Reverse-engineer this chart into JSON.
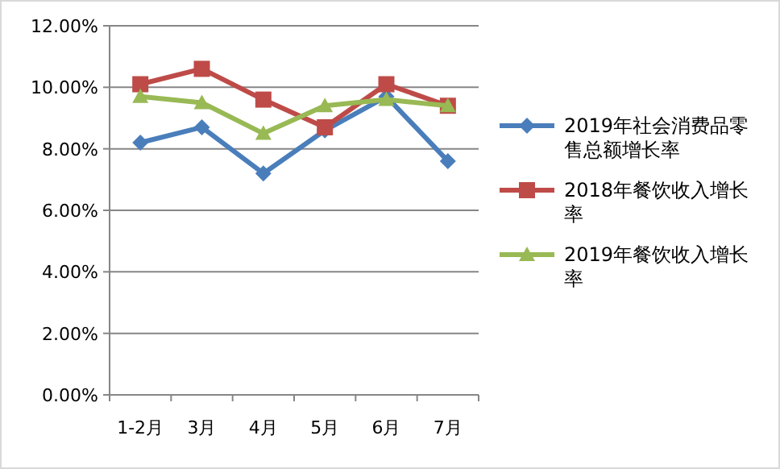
{
  "chart_data": {
    "type": "line",
    "categories": [
      "1-2月",
      "3月",
      "4月",
      "5月",
      "6月",
      "7月"
    ],
    "series": [
      {
        "name": "2019年社会消费品零售总额增长率",
        "color": "#4a7ebb",
        "marker": "diamond",
        "values": [
          8.2,
          8.7,
          7.2,
          8.6,
          9.7,
          7.6
        ]
      },
      {
        "name": "2018年餐饮收入增长率",
        "color": "#be4b48",
        "marker": "square",
        "values": [
          10.1,
          10.6,
          9.6,
          8.7,
          10.1,
          9.4
        ]
      },
      {
        "name": "2019年餐饮收入增长率",
        "color": "#98b954",
        "marker": "triangle",
        "values": [
          9.7,
          9.5,
          8.5,
          9.4,
          9.6,
          9.4
        ]
      }
    ],
    "ylim": [
      0,
      12
    ],
    "yticks": [
      {
        "value": 0,
        "label": "0.00%"
      },
      {
        "value": 2,
        "label": "2.00%"
      },
      {
        "value": 4,
        "label": "4.00%"
      },
      {
        "value": 6,
        "label": "6.00%"
      },
      {
        "value": 8,
        "label": "8.00%"
      },
      {
        "value": 10,
        "label": "10.00%"
      },
      {
        "value": 12,
        "label": "12.00%"
      }
    ],
    "grid": "y",
    "legend": "right"
  }
}
